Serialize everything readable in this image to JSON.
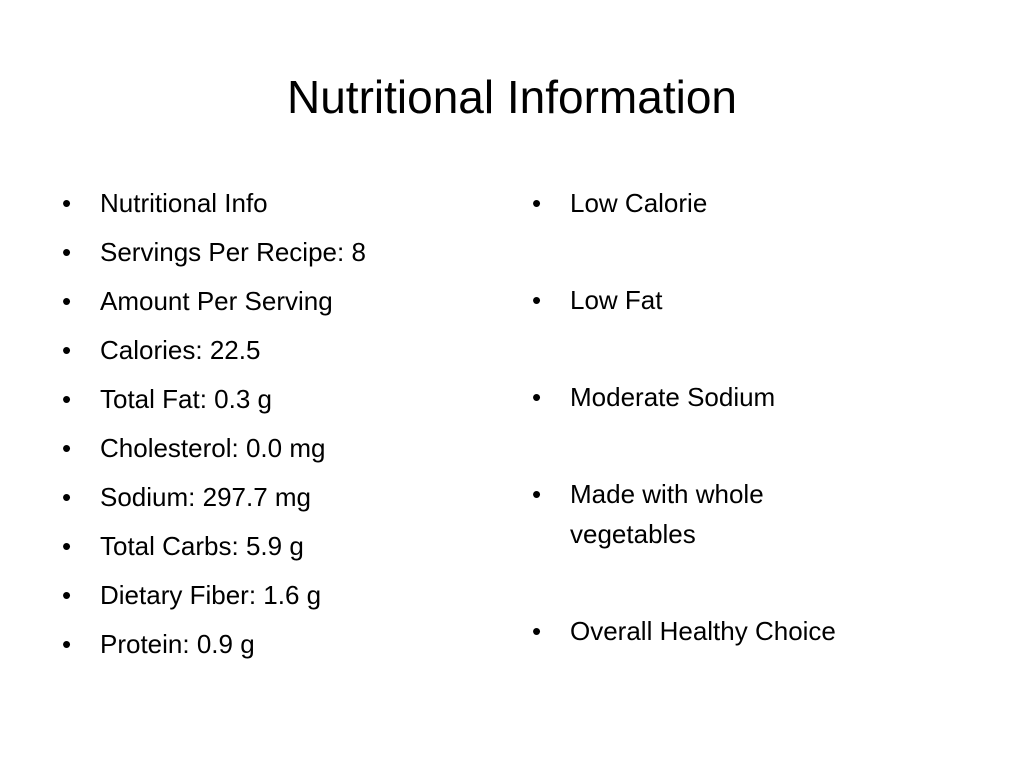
{
  "title": "Nutritional Information",
  "left_list": [
    "Nutritional Info",
    "Servings Per Recipe: 8",
    "Amount Per Serving",
    "Calories: 22.5",
    "Total Fat: 0.3 g",
    "Cholesterol: 0.0 mg",
    "Sodium: 297.7 mg",
    "Total Carbs: 5.9 g",
    "Dietary Fiber: 1.6 g",
    "Protein: 0.9 g"
  ],
  "right_list": [
    "Low Calorie",
    "Low Fat",
    "Moderate Sodium",
    "Made with whole vegetables",
    "Overall Healthy Choice"
  ]
}
